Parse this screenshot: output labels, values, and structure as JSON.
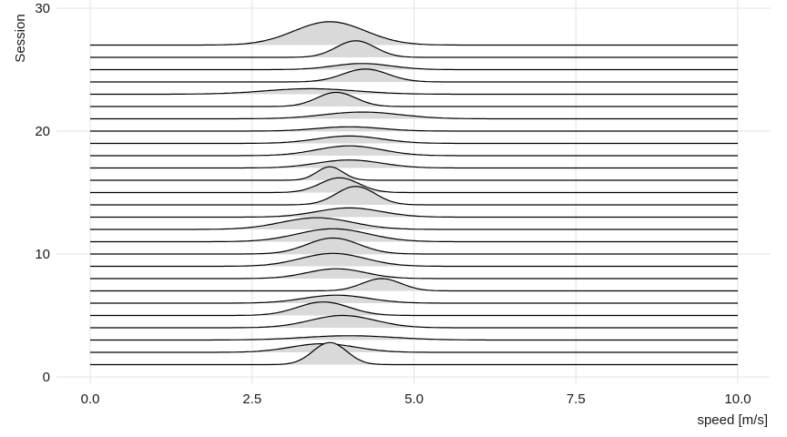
{
  "chart_data": {
    "type": "ridgeline",
    "xlabel": "speed [m/s]",
    "ylabel": "Session",
    "xlim": [
      0,
      10
    ],
    "ylim": [
      0,
      30
    ],
    "x_ticks": [
      "0.0",
      "2.5",
      "5.0",
      "7.5",
      "10.0"
    ],
    "y_ticks": [
      "0",
      "10",
      "20",
      "30"
    ],
    "grid": true,
    "fill_color": "#d9d9d9",
    "line_color": "#000000",
    "series": [
      {
        "session": 1,
        "peak": 3.7,
        "sd": 0.26,
        "height": 1.8
      },
      {
        "session": 2,
        "peak": 3.6,
        "sd": 0.5,
        "height": 0.7
      },
      {
        "session": 3,
        "peak": 4.0,
        "sd": 0.7,
        "height": 0.35
      },
      {
        "session": 4,
        "peak": 3.9,
        "sd": 0.5,
        "height": 1.0
      },
      {
        "session": 5,
        "peak": 3.6,
        "sd": 0.4,
        "height": 1.1
      },
      {
        "session": 6,
        "peak": 3.8,
        "sd": 0.5,
        "height": 0.65
      },
      {
        "session": 7,
        "peak": 4.5,
        "sd": 0.3,
        "height": 1.0
      },
      {
        "session": 8,
        "peak": 3.8,
        "sd": 0.45,
        "height": 0.8
      },
      {
        "session": 9,
        "peak": 3.75,
        "sd": 0.5,
        "height": 1.05
      },
      {
        "session": 10,
        "peak": 3.75,
        "sd": 0.4,
        "height": 1.3
      },
      {
        "session": 11,
        "peak": 3.75,
        "sd": 0.55,
        "height": 1.05
      },
      {
        "session": 12,
        "peak": 3.5,
        "sd": 0.55,
        "height": 0.95
      },
      {
        "session": 13,
        "peak": 4.0,
        "sd": 0.5,
        "height": 0.75
      },
      {
        "session": 14,
        "peak": 4.1,
        "sd": 0.3,
        "height": 1.5
      },
      {
        "session": 15,
        "peak": 3.85,
        "sd": 0.3,
        "height": 1.2
      },
      {
        "session": 16,
        "peak": 3.7,
        "sd": 0.2,
        "height": 1.1
      },
      {
        "session": 17,
        "peak": 4.0,
        "sd": 0.5,
        "height": 0.65
      },
      {
        "session": 18,
        "peak": 4.0,
        "sd": 0.5,
        "height": 0.8
      },
      {
        "session": 19,
        "peak": 4.0,
        "sd": 0.5,
        "height": 0.6
      },
      {
        "session": 20,
        "peak": 4.0,
        "sd": 0.5,
        "height": 0.35
      },
      {
        "session": 21,
        "peak": 4.2,
        "sd": 0.6,
        "height": 0.55
      },
      {
        "session": 22,
        "peak": 3.8,
        "sd": 0.3,
        "height": 1.15
      },
      {
        "session": 23,
        "peak": 3.4,
        "sd": 0.7,
        "height": 0.45
      },
      {
        "session": 24,
        "peak": 4.25,
        "sd": 0.35,
        "height": 1.05
      },
      {
        "session": 25,
        "peak": 4.2,
        "sd": 0.45,
        "height": 0.5
      },
      {
        "session": 26,
        "peak": 4.1,
        "sd": 0.3,
        "height": 1.35
      },
      {
        "session": 27,
        "peak": 3.7,
        "sd": 0.55,
        "height": 1.9
      }
    ]
  }
}
